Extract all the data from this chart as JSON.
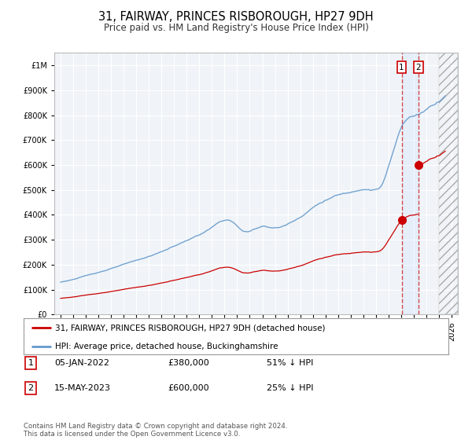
{
  "title": "31, FAIRWAY, PRINCES RISBOROUGH, HP27 9DH",
  "subtitle": "Price paid vs. HM Land Registry's House Price Index (HPI)",
  "hpi_color": "#6699cc",
  "sale_color": "#cc0000",
  "legend_box_sale": "31, FAIRWAY, PRINCES RISBOROUGH, HP27 9DH (detached house)",
  "legend_box_hpi": "HPI: Average price, detached house, Buckinghamshire",
  "annotation_1_date": "05-JAN-2022",
  "annotation_1_price": "£380,000",
  "annotation_1_hpi": "51% ↓ HPI",
  "annotation_2_date": "15-MAY-2023",
  "annotation_2_price": "£600,000",
  "annotation_2_hpi": "25% ↓ HPI",
  "footer": "Contains HM Land Registry data © Crown copyright and database right 2024.\nThis data is licensed under the Open Government Licence v3.0.",
  "sale_date_1": 2022.04,
  "sale_price_1": 380000,
  "sale_date_2": 2023.37,
  "sale_price_2": 600000,
  "hpi_index_base": 100.0,
  "ylim": [
    0,
    1050000
  ],
  "xlim_start": 1994.5,
  "xlim_end": 2026.5,
  "background_color": "#f0f4f8",
  "grid_color": "#ffffff",
  "title_fontsize": 10.5,
  "subtitle_fontsize": 8.5,
  "axis_fontsize": 7.0
}
